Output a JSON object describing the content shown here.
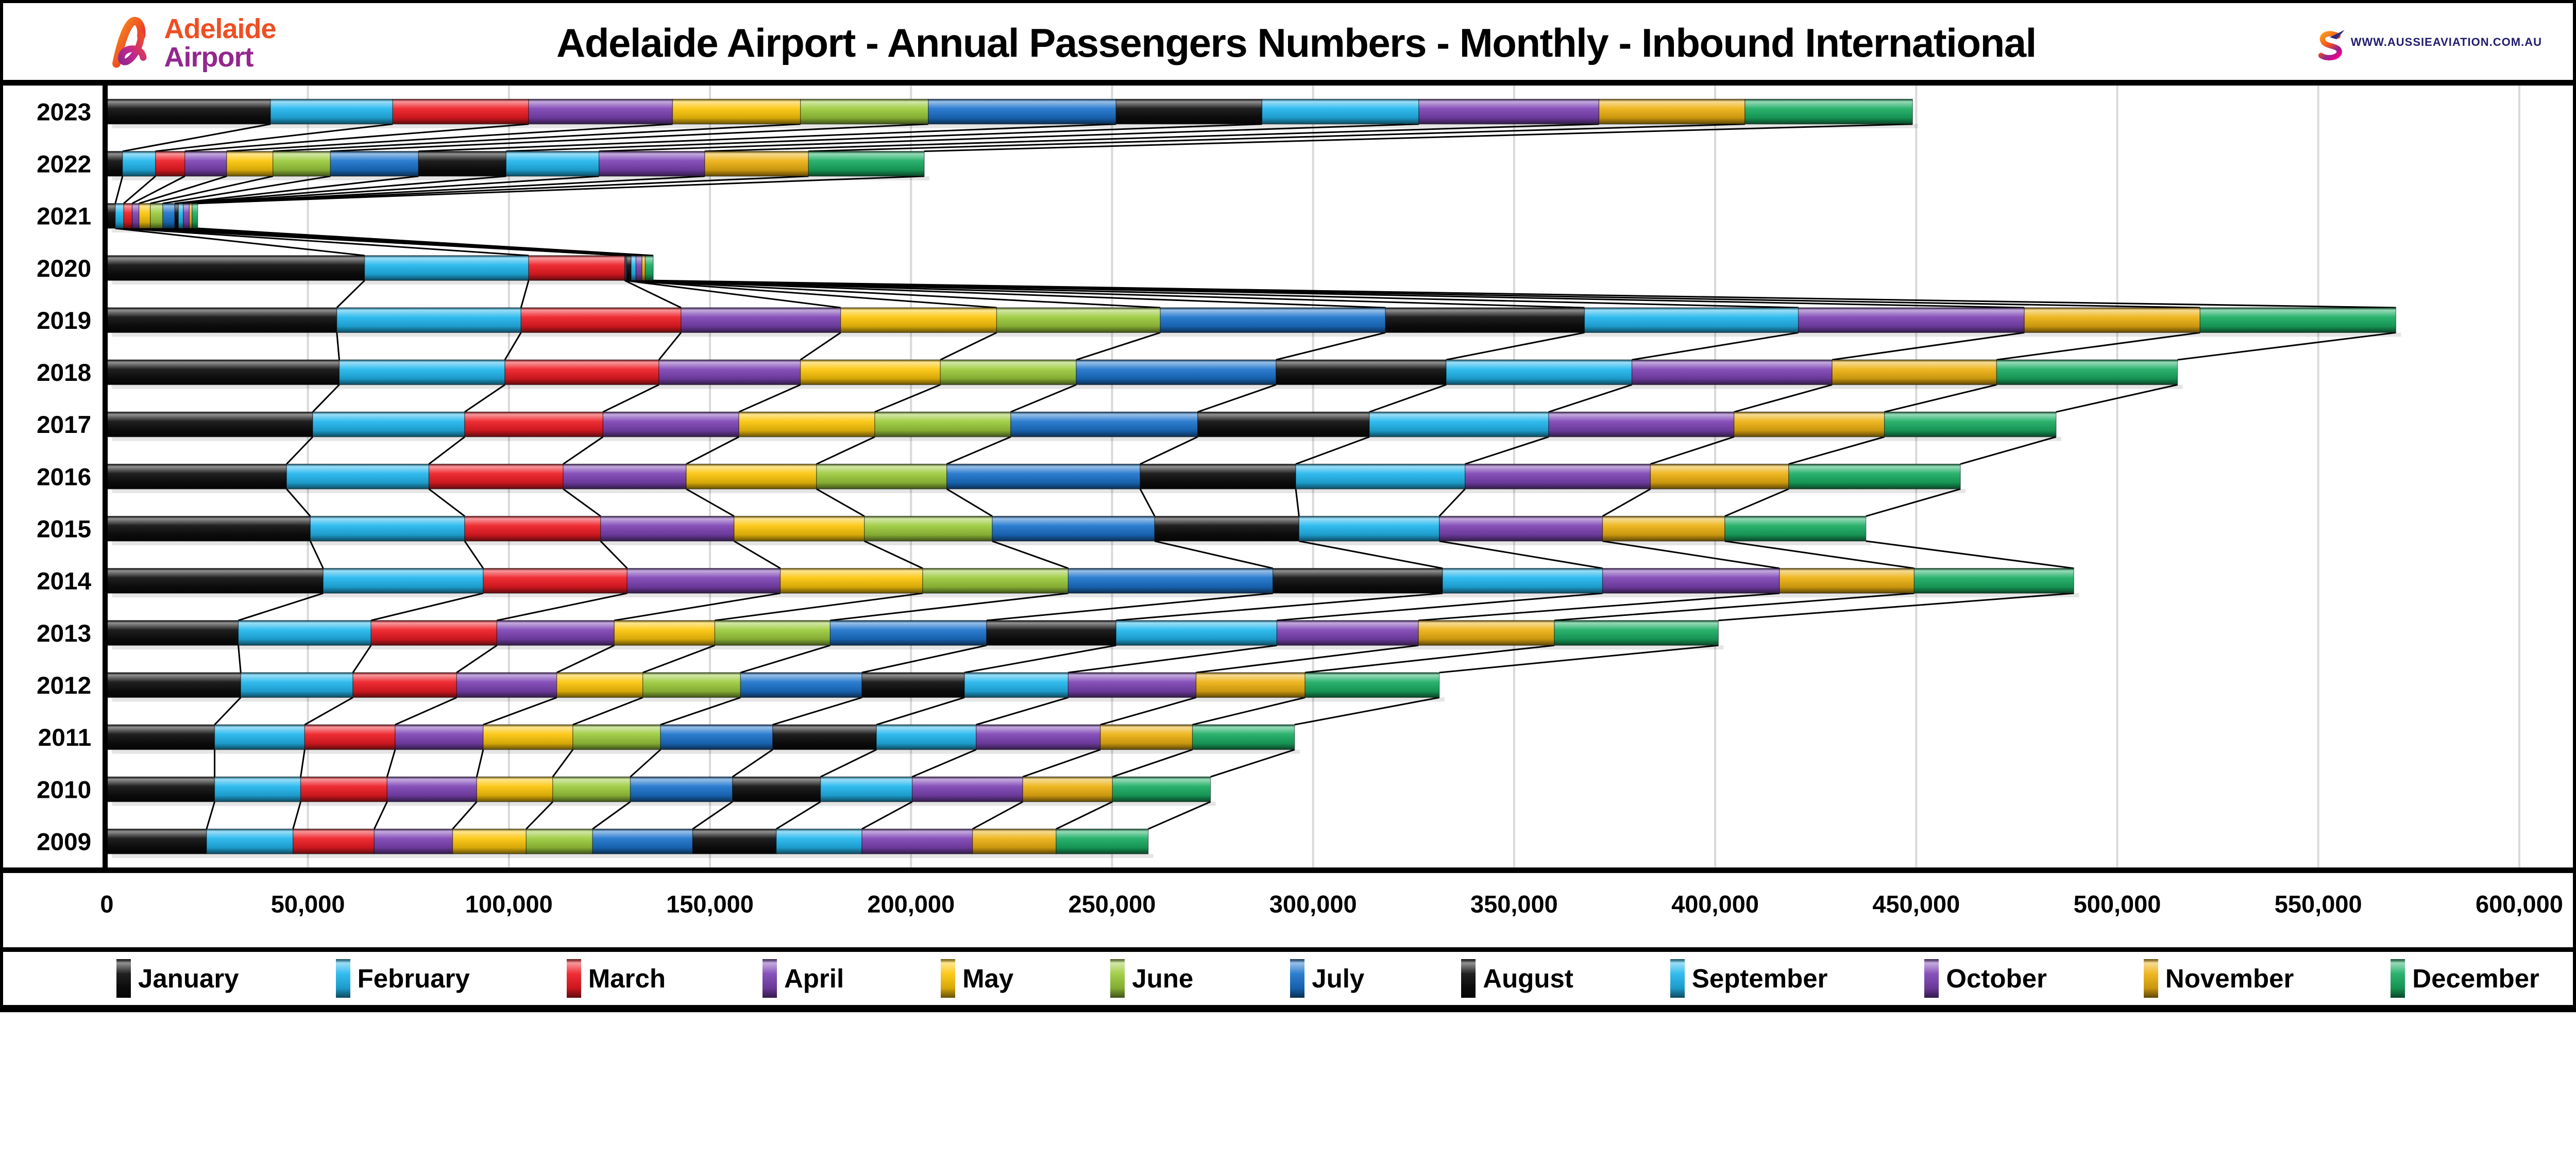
{
  "header": {
    "logo": {
      "name": "Adelaide Airport logo",
      "line1": "Adelaide",
      "line2": "Airport"
    },
    "title": "Adelaide Airport - Annual Passengers Numbers - Monthly - Inbound International",
    "right_logo": {
      "name": "Aussie Aviation logo",
      "url": "WWW.AUSSIEAVIATION.COM.AU"
    }
  },
  "colors": {
    "jan_aug_black": "#0d0d0d",
    "feb_sep_cyan": "#22b7ee",
    "mar_red": "#ee1c24",
    "apr_oct_purple": "#7d44b5",
    "may_yellow": "#fcc60a",
    "jun_lightgreen": "#9ccb3c",
    "jul_blue": "#1c73cc",
    "nov_gold": "#edb111",
    "dec_green": "#1aad62",
    "gridline": "#d9d9d9",
    "axis_line": "#000000",
    "series_line": "#000000"
  },
  "chart_data": {
    "type": "bar",
    "orientation": "horizontal",
    "stacked": true,
    "title": "Adelaide Airport - Annual Passengers Numbers - Monthly - Inbound International",
    "categories": [
      "2023",
      "2022",
      "2021",
      "2020",
      "2019",
      "2018",
      "2017",
      "2016",
      "2015",
      "2014",
      "2013",
      "2012",
      "2011",
      "2010",
      "2009"
    ],
    "xlim": [
      0,
      600000
    ],
    "x_tick_step": 50000,
    "x_tick_labels": [
      "0",
      "50,000",
      "100,000",
      "150,000",
      "200,000",
      "250,000",
      "300,000",
      "350,000",
      "400,000",
      "450,000",
      "500,000",
      "550,000",
      "600,000"
    ],
    "grid": "vertical",
    "legend_position": "bottom",
    "series_lines": true,
    "series": [
      {
        "name": "January",
        "color": "#0d0d0d",
        "values": [
          40700,
          3900,
          2100,
          64100,
          57200,
          57800,
          51200,
          44700,
          50600,
          53800,
          32700,
          33300,
          26800,
          26800,
          24800
        ]
      },
      {
        "name": "February",
        "color": "#22b7ee",
        "values": [
          30400,
          8200,
          2100,
          40800,
          45800,
          41200,
          37800,
          35400,
          38400,
          39800,
          33000,
          27900,
          22400,
          21400,
          21500
        ]
      },
      {
        "name": "March",
        "color": "#ee1c24",
        "values": [
          33800,
          7300,
          2100,
          23900,
          39800,
          38300,
          34400,
          33400,
          33800,
          35800,
          31300,
          25800,
          22500,
          21500,
          20200
        ]
      },
      {
        "name": "April",
        "color": "#7d44b5",
        "values": [
          35800,
          10400,
          1700,
          100,
          39700,
          35200,
          33800,
          30600,
          33200,
          38100,
          29200,
          24900,
          21900,
          22300,
          19500
        ]
      },
      {
        "name": "May",
        "color": "#fcc60a",
        "values": [
          31800,
          11500,
          2800,
          100,
          38800,
          34800,
          33800,
          32400,
          32400,
          35400,
          25000,
          21400,
          22300,
          18900,
          18300
        ]
      },
      {
        "name": "June",
        "color": "#9ccb3c",
        "values": [
          31800,
          14300,
          3100,
          100,
          40700,
          33800,
          33800,
          32400,
          31800,
          36200,
          28700,
          24300,
          21800,
          19300,
          16500
        ]
      },
      {
        "name": "July",
        "color": "#1c73cc",
        "values": [
          46700,
          21900,
          3000,
          200,
          56000,
          49700,
          46500,
          48100,
          40400,
          50900,
          38900,
          30200,
          27900,
          25400,
          24900
        ]
      },
      {
        "name": "August",
        "color": "#0d0d0d",
        "values": [
          36300,
          21800,
          900,
          1100,
          49500,
          42300,
          42700,
          38700,
          35900,
          42200,
          32200,
          25500,
          25800,
          21900,
          20800
        ]
      },
      {
        "name": "September",
        "color": "#22b7ee",
        "values": [
          39000,
          23100,
          1200,
          1200,
          53200,
          46200,
          44600,
          42100,
          34900,
          39800,
          40000,
          25800,
          24800,
          22800,
          21300
        ]
      },
      {
        "name": "October",
        "color": "#7d44b5",
        "values": [
          44800,
          26300,
          1500,
          1500,
          56200,
          49800,
          46100,
          46100,
          40600,
          44000,
          35200,
          31800,
          30900,
          27500,
          27500
        ]
      },
      {
        "name": "November",
        "color": "#edb111",
        "values": [
          36300,
          25800,
          700,
          800,
          43700,
          40900,
          37400,
          34400,
          30400,
          33500,
          33800,
          27100,
          22900,
          22300,
          20800
        ]
      },
      {
        "name": "December",
        "color": "#1aad62",
        "values": [
          41700,
          28800,
          1400,
          2000,
          48700,
          45000,
          42700,
          42700,
          35100,
          39700,
          40800,
          33400,
          25400,
          24400,
          22900
        ]
      }
    ]
  }
}
